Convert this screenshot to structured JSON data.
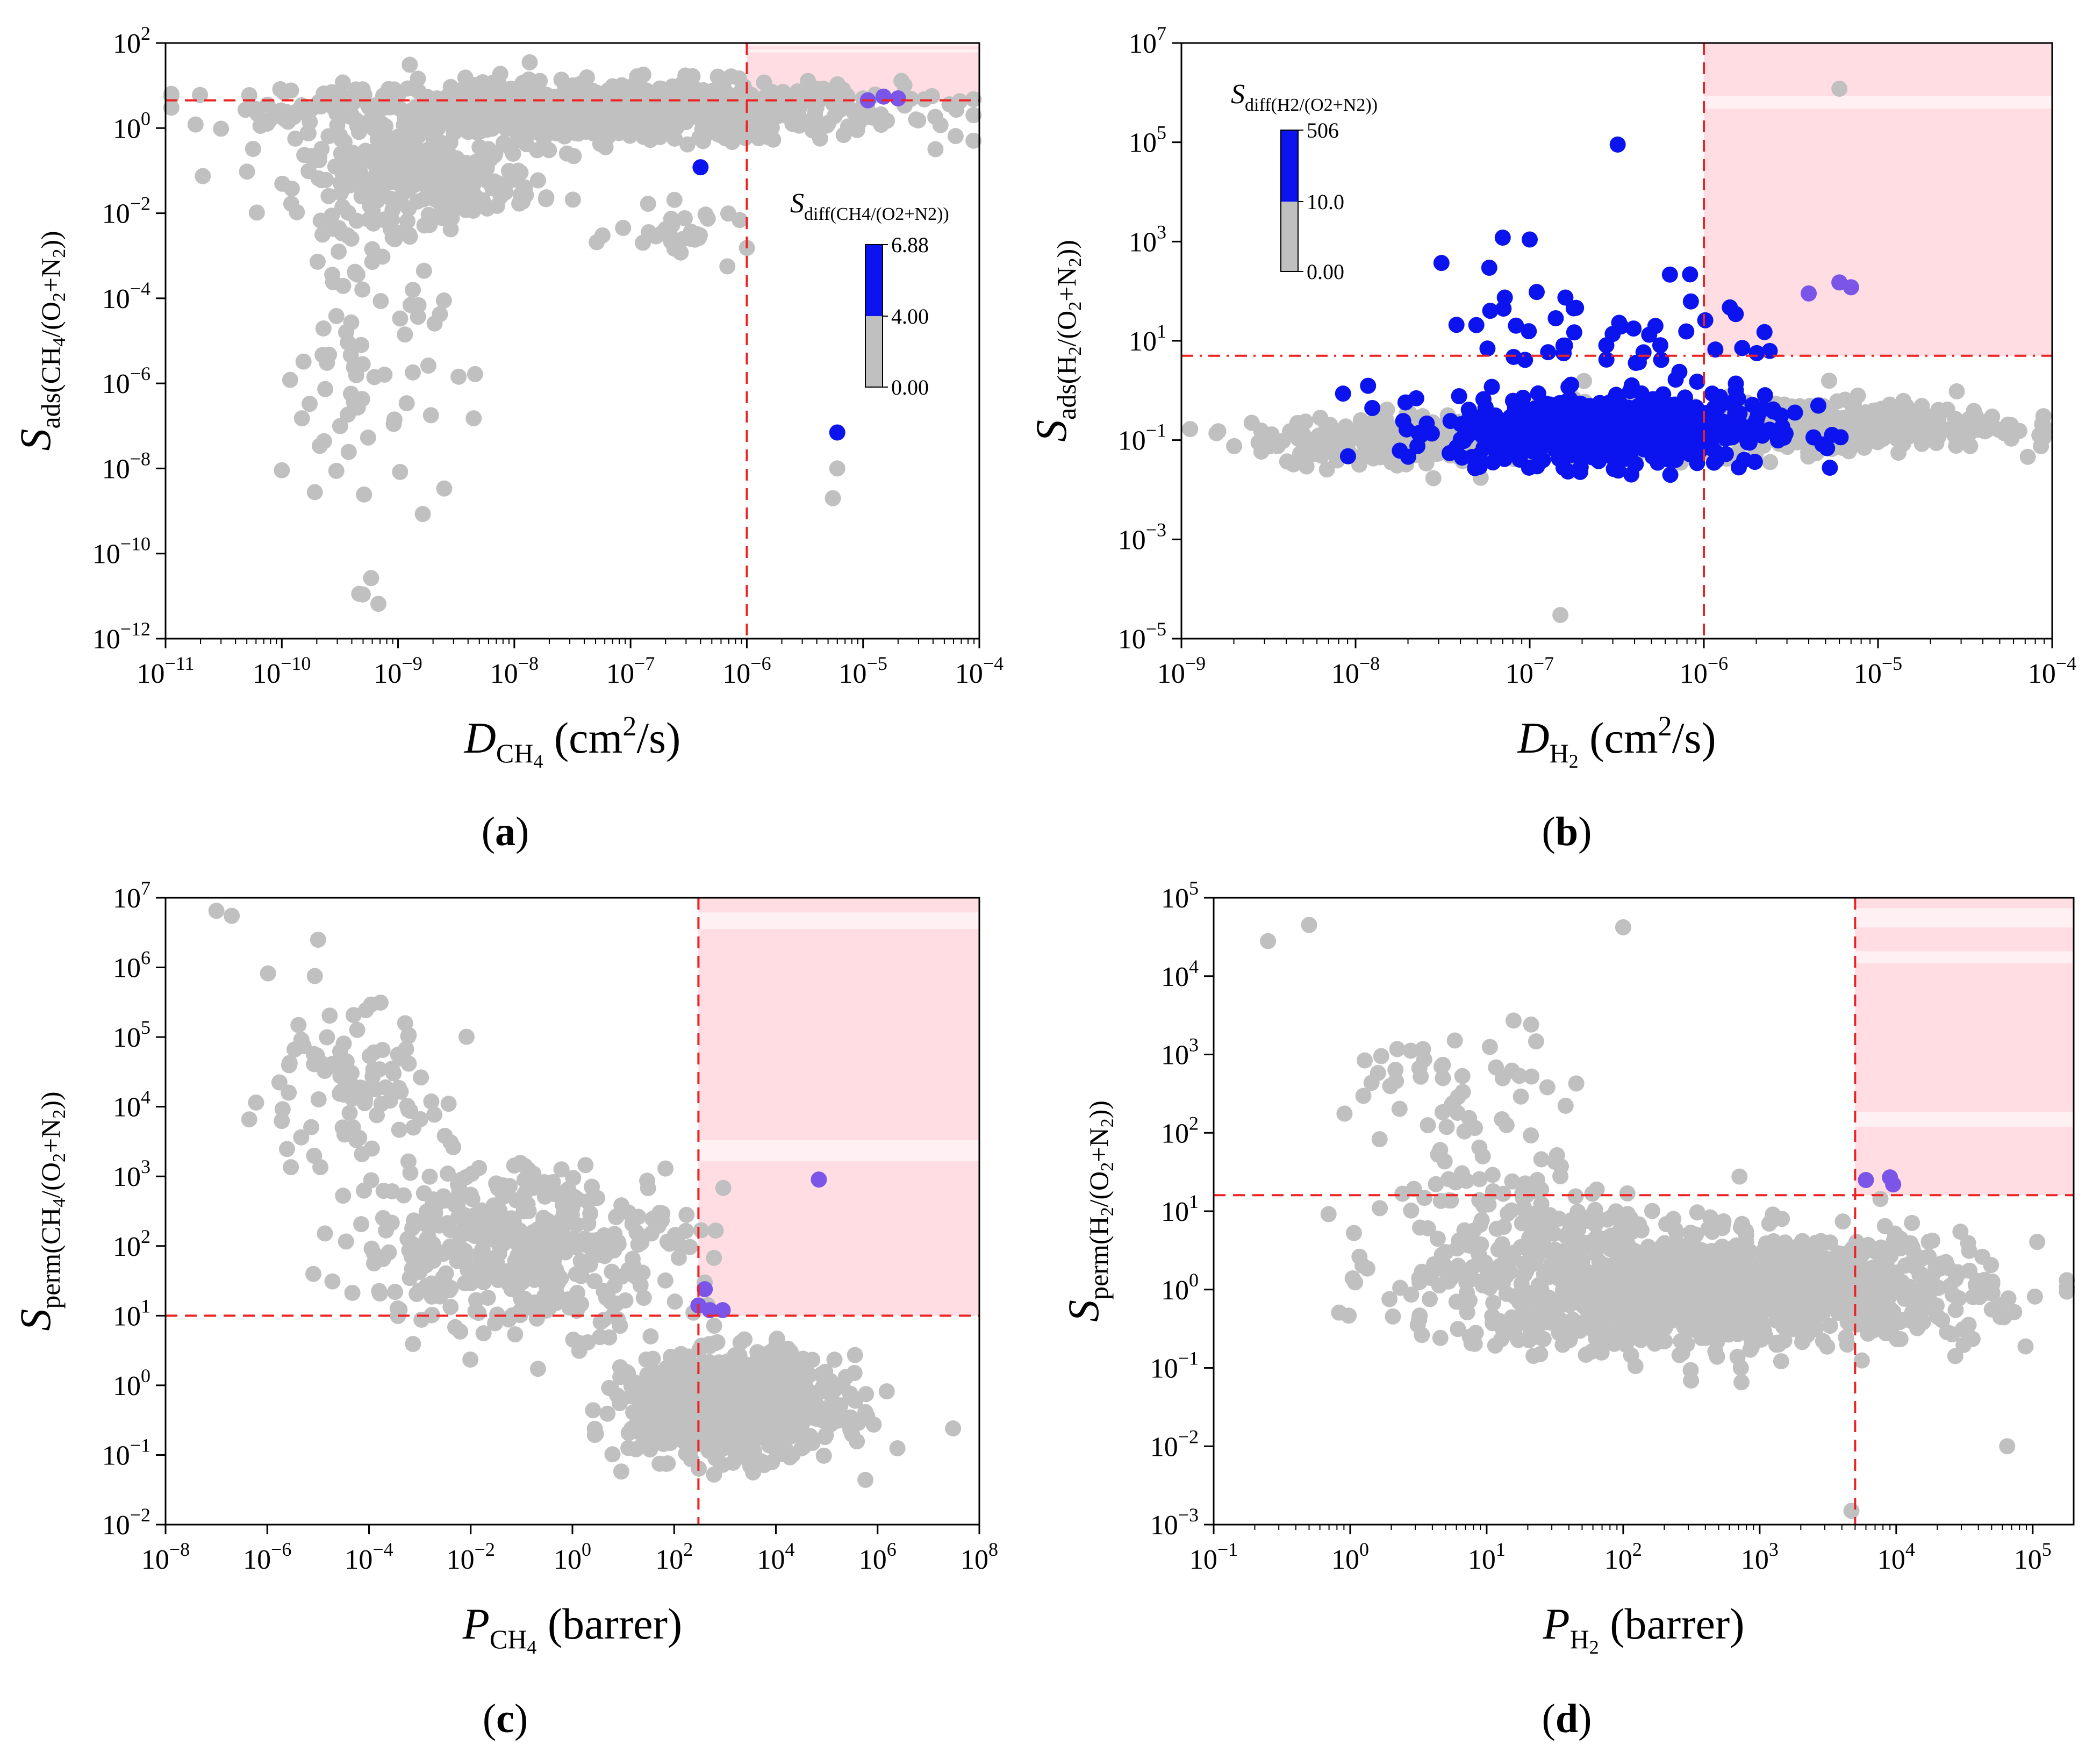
{
  "colors": {
    "selected": "#0b14ef",
    "other": "#c0c0c0",
    "top": "#7a55e8",
    "threshold": "#ee2222",
    "region": "#ffdde2"
  },
  "chart_data": [
    {
      "panel": "a",
      "type": "scatter",
      "panel_label": "(a)",
      "xlabel": {
        "main": "D",
        "sub": "CH",
        "sub2": "4",
        "unit": " (cm",
        "sup": "2",
        "unit2": "/s)"
      },
      "ylabel": {
        "main": "S",
        "sub": "ads(CH",
        "sub2": "4",
        "sub3": "/(O",
        "sub4": "2",
        "sub5": "+N",
        "sub6": "2",
        "sub7": "))"
      },
      "xscale": "log",
      "yscale": "log",
      "xlim_exp": [
        -11,
        -4
      ],
      "ylim_exp": [
        -12,
        2
      ],
      "xticks": [
        "10-11",
        "10-10",
        "10-9",
        "10-8",
        "10-7",
        "10-6",
        "10-5",
        "10-4"
      ],
      "yticks": [
        "10-12",
        "10-10",
        "10-8",
        "10-6",
        "10-4",
        "10-2",
        "100",
        "102"
      ],
      "threshold_x": 1e-06,
      "threshold_y": 4.5,
      "colorbar": {
        "title": "Sdiff(CH4/(O2+N2))",
        "ticks": [
          "6.88",
          "4.00",
          "0.00"
        ],
        "position": "right-middle"
      },
      "highlight_points": [
        {
          "x": 2e-05,
          "y": 5.0,
          "color": "top"
        },
        {
          "x": 1.5e-05,
          "y": 5.5,
          "color": "top"
        },
        {
          "x": 1.1e-05,
          "y": 4.5,
          "color": "top"
        },
        {
          "x": 6e-06,
          "y": 7e-08,
          "color": "selected"
        },
        {
          "x": 4e-07,
          "y": 0.12,
          "color": "selected"
        },
        {
          "x": 5.5e-06,
          "y": 2e-09,
          "color": "other"
        },
        {
          "x": 6e-06,
          "y": 1e-08,
          "color": "other"
        }
      ],
      "clusters": [
        {
          "cx": -7.3,
          "cy": 0.4,
          "sx": 1.3,
          "sy": 0.35,
          "n": 900,
          "color": "other"
        },
        {
          "cx": -8.8,
          "cy": -1.2,
          "sx": 0.5,
          "sy": 0.45,
          "n": 260,
          "color": "other"
        },
        {
          "cx": -9.3,
          "cy": -5.0,
          "sx": 0.35,
          "sy": 2.5,
          "n": 90,
          "color": "other"
        },
        {
          "cx": -6.5,
          "cy": -2.5,
          "sx": 0.3,
          "sy": 0.3,
          "n": 30,
          "color": "other"
        }
      ]
    },
    {
      "panel": "b",
      "type": "scatter",
      "panel_label": "(b)",
      "xlabel": {
        "main": "D",
        "sub": "H",
        "sub2": "2",
        "unit": " (cm",
        "sup": "2",
        "unit2": "/s)"
      },
      "ylabel": {
        "main": "S",
        "sub": "ads(H",
        "sub2": "2",
        "sub3": "/(O",
        "sub4": "2",
        "sub5": "+N",
        "sub6": "2",
        "sub7": "))"
      },
      "xscale": "log",
      "yscale": "log",
      "xlim_exp": [
        -9,
        -4
      ],
      "ylim_exp": [
        -5,
        7
      ],
      "xticks": [
        "10-9",
        "10-8",
        "10-7",
        "10-6",
        "10-5",
        "10-4"
      ],
      "yticks": [
        "10-5",
        "10-3",
        "10-1",
        "101",
        "103",
        "105",
        "107"
      ],
      "threshold_x": 1e-06,
      "threshold_y": 5.0,
      "colorbar": {
        "title": "Sdiff(H2/(O2+N2))",
        "ticks": [
          "506",
          "10.0",
          "0.00"
        ],
        "position": "top-left"
      },
      "highlight_points": [
        {
          "x": 3.2e-07,
          "y": 90000.0,
          "color": "selected"
        },
        {
          "x": 7e-08,
          "y": 1200,
          "color": "selected"
        },
        {
          "x": 1e-07,
          "y": 1100,
          "color": "selected"
        },
        {
          "x": 6e-06,
          "y": 150,
          "color": "top"
        },
        {
          "x": 7e-06,
          "y": 120,
          "color": "top"
        },
        {
          "x": 4e-06,
          "y": 90,
          "color": "top"
        },
        {
          "x": 6e-06,
          "y": 1200000.0,
          "color": "other"
        },
        {
          "x": 1.5e-07,
          "y": 3e-05,
          "color": "other"
        }
      ],
      "clusters": [
        {
          "cx": -6.55,
          "cy": -0.8,
          "sx": 0.45,
          "sy": 0.35,
          "n": 600,
          "color": "selected"
        },
        {
          "cx": -5.5,
          "cy": -0.7,
          "sx": 0.6,
          "sy": 0.25,
          "n": 500,
          "color": "other"
        },
        {
          "cx": -7.6,
          "cy": -1.0,
          "sx": 0.5,
          "sy": 0.25,
          "n": 300,
          "color": "other"
        },
        {
          "cx": -6.5,
          "cy": 0.8,
          "sx": 0.5,
          "sy": 0.8,
          "n": 60,
          "color": "selected"
        }
      ]
    },
    {
      "panel": "c",
      "type": "scatter",
      "panel_label": "(c)",
      "xlabel": {
        "main": "P",
        "sub": "CH",
        "sub2": "4",
        "unit": " (barrer)",
        "sup": "",
        "unit2": ""
      },
      "ylabel": {
        "main": "S",
        "sub": "perm(CH",
        "sub2": "4",
        "sub3": "/(O",
        "sub4": "2",
        "sub5": "+N",
        "sub6": "2",
        "sub7": "))"
      },
      "xscale": "log",
      "yscale": "log",
      "xlim_exp": [
        -8,
        8
      ],
      "ylim_exp": [
        -2,
        7
      ],
      "xticks": [
        "10-8",
        "10-6",
        "10-4",
        "10-2",
        "100",
        "102",
        "104",
        "106",
        "108"
      ],
      "yticks": [
        "10-2",
        "10-1",
        "100",
        "101",
        "102",
        "103",
        "104",
        "105",
        "106",
        "107"
      ],
      "threshold_x": 300,
      "threshold_y": 10,
      "colorbar": null,
      "highlight_points": [
        {
          "x": 70000,
          "y": 900,
          "color": "top"
        },
        {
          "x": 400,
          "y": 24,
          "color": "top"
        },
        {
          "x": 300,
          "y": 14,
          "color": "top"
        },
        {
          "x": 500,
          "y": 12,
          "color": "top"
        },
        {
          "x": 900,
          "y": 12,
          "color": "top"
        },
        {
          "x": 1e-07,
          "y": 6500000.0,
          "color": "other"
        },
        {
          "x": 2e-07,
          "y": 5500000.0,
          "color": "other"
        },
        {
          "x": 1e-05,
          "y": 2500000.0,
          "color": "other"
        }
      ],
      "clusters": [
        {
          "cx": 3.2,
          "cy": -0.3,
          "sx": 1.0,
          "sy": 0.35,
          "n": 900,
          "color": "other"
        },
        {
          "cx": -1.0,
          "cy": 2.0,
          "sx": 1.6,
          "sy": 0.6,
          "n": 420,
          "color": "other"
        },
        {
          "cx": -4.5,
          "cy": 4.2,
          "sx": 1.0,
          "sy": 0.6,
          "n": 100,
          "color": "other"
        }
      ]
    },
    {
      "panel": "d",
      "type": "scatter",
      "panel_label": "(d)",
      "xlabel": {
        "main": "P",
        "sub": "H",
        "sub2": "2",
        "unit": " (barrer)",
        "sup": "",
        "unit2": ""
      },
      "ylabel": {
        "main": "S",
        "sub": "perm(H",
        "sub2": "2",
        "sub3": "/(O",
        "sub4": "2",
        "sub5": "+N",
        "sub6": "2",
        "sub7": "))"
      },
      "xscale": "log",
      "yscale": "log",
      "xlim_exp": [
        -1,
        5.3
      ],
      "ylim_exp": [
        -3,
        5
      ],
      "xticks": [
        "10-1",
        "100",
        "101",
        "102",
        "103",
        "104",
        "105"
      ],
      "yticks": [
        "10-3",
        "10-2",
        "10-1",
        "100",
        "101",
        "102",
        "103",
        "104",
        "105"
      ],
      "threshold_x": 5000,
      "threshold_y": 16,
      "colorbar": null,
      "highlight_points": [
        {
          "x": 6000,
          "y": 25,
          "color": "top"
        },
        {
          "x": 9000,
          "y": 27,
          "color": "top"
        },
        {
          "x": 9500,
          "y": 22,
          "color": "top"
        },
        {
          "x": 0.25,
          "y": 28000,
          "color": "other"
        },
        {
          "x": 0.5,
          "y": 45000,
          "color": "other"
        },
        {
          "x": 100,
          "y": 42000,
          "color": "other"
        },
        {
          "x": 4700,
          "y": 0.0015,
          "color": "other"
        },
        {
          "x": 65000,
          "y": 0.01,
          "color": "other"
        }
      ],
      "clusters": [
        {
          "cx": 2.8,
          "cy": 0.0,
          "sx": 0.9,
          "sy": 0.35,
          "n": 1200,
          "color": "other"
        },
        {
          "cx": 1.2,
          "cy": 0.6,
          "sx": 0.5,
          "sy": 0.7,
          "n": 200,
          "color": "other"
        },
        {
          "cx": 0.8,
          "cy": 2.5,
          "sx": 0.4,
          "sy": 0.5,
          "n": 50,
          "color": "other"
        }
      ]
    }
  ]
}
